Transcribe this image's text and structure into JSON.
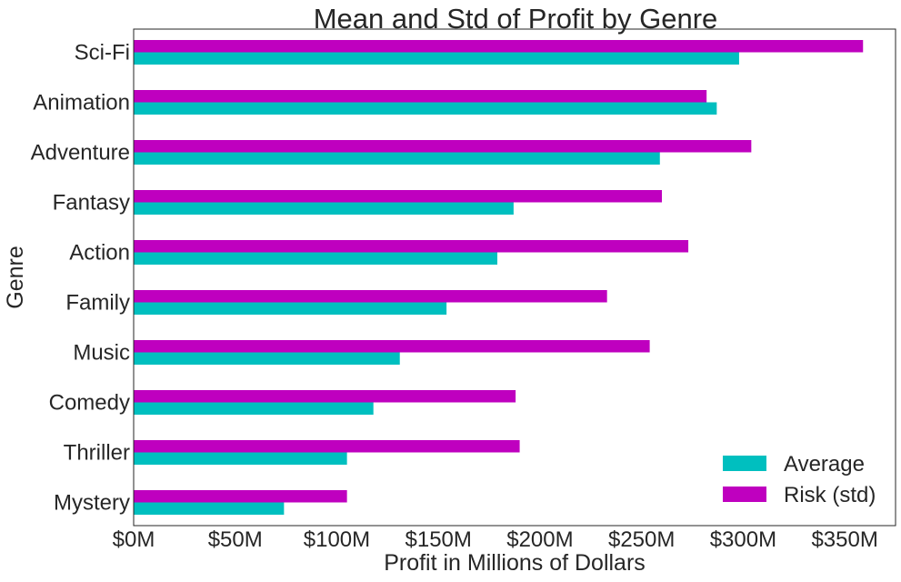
{
  "chart_data": {
    "type": "bar",
    "orientation": "horizontal",
    "title": "Mean and Std of Profit by Genre",
    "xlabel": "Profit in Millions of Dollars",
    "ylabel": "Genre",
    "xlim": [
      0,
      375
    ],
    "x_ticks": [
      0,
      50,
      100,
      150,
      200,
      250,
      300,
      350
    ],
    "x_tick_labels": [
      "$0M",
      "$50M",
      "$100M",
      "$150M",
      "$200M",
      "$250M",
      "$300M",
      "$350M"
    ],
    "grid": false,
    "legend_position": "bottom-right",
    "categories": [
      "Mystery",
      "Thriller",
      "Comedy",
      "Music",
      "Family",
      "Action",
      "Fantasy",
      "Adventure",
      "Animation",
      "Sci-Fi"
    ],
    "series": [
      {
        "name": "Average",
        "color": "#00bfbf",
        "values": [
          74,
          105,
          118,
          131,
          154,
          179,
          187,
          259,
          287,
          298
        ]
      },
      {
        "name": "Risk (std)",
        "color": "#bf00bf",
        "values": [
          105,
          190,
          188,
          254,
          233,
          273,
          260,
          304,
          282,
          359
        ]
      }
    ]
  }
}
